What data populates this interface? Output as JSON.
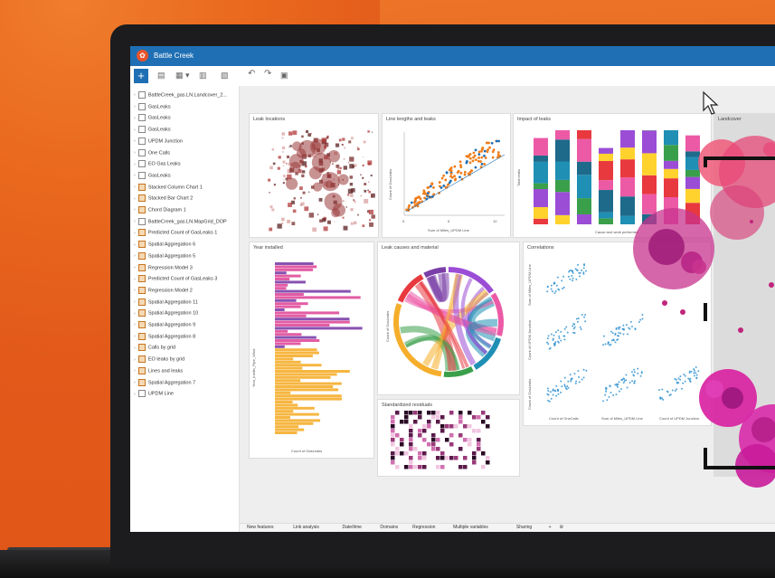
{
  "app": {
    "title": "Battle Creek",
    "logo_glyph": "✿",
    "add_glyph": "+"
  },
  "toolbar": {
    "icons": [
      "undo-icon",
      "redo-icon",
      "layout-icon"
    ],
    "glyphs": {
      "tool1": "▤",
      "tool2": "▦ ▾",
      "tool3": "▥",
      "tool4": "▧",
      "undo": "↶",
      "redo": "↷",
      "layout": "▣"
    }
  },
  "sidebar": {
    "items": [
      {
        "label": "BattleCreek_gas.LN.Landcover_2...",
        "type": "layer"
      },
      {
        "label": "GasLeaks",
        "type": "layer"
      },
      {
        "label": "GasLeaks",
        "type": "layer"
      },
      {
        "label": "GasLeaks",
        "type": "layer"
      },
      {
        "label": "UPDM Junction",
        "type": "layer"
      },
      {
        "label": "One Calls",
        "type": "layer"
      },
      {
        "label": "EO Gas Leaks",
        "type": "layer"
      },
      {
        "label": "GasLeaks",
        "type": "layer"
      },
      {
        "label": "Stacked Column Chart 1",
        "type": "chart"
      },
      {
        "label": "Stacked Bar Chart 2",
        "type": "chart"
      },
      {
        "label": "Chord Diagram 1",
        "type": "chart"
      },
      {
        "label": "BattleCreek_gas.LN.MapGrid_DOP",
        "type": "layer"
      },
      {
        "label": "Predicted Count of GasLeaks 1",
        "type": "chart"
      },
      {
        "label": "Spatial Aggregation 6",
        "type": "chart"
      },
      {
        "label": "Spatial Aggregation 5",
        "type": "chart"
      },
      {
        "label": "Regression Model 3",
        "type": "model"
      },
      {
        "label": "Predicted Count of GasLeaks 3",
        "type": "chart"
      },
      {
        "label": "Regression Model 2",
        "type": "model"
      },
      {
        "label": "Spatial Aggregation 11",
        "type": "chart"
      },
      {
        "label": "Spatial Aggregation 10",
        "type": "chart"
      },
      {
        "label": "Spatial Aggregation 9",
        "type": "chart"
      },
      {
        "label": "Spatial Aggregation 8",
        "type": "chart"
      },
      {
        "label": "Calls by grid",
        "type": "chart"
      },
      {
        "label": "EO leaks by grid",
        "type": "chart"
      },
      {
        "label": "Lines and leaks",
        "type": "chart"
      },
      {
        "label": "Spatial Aggregation 7",
        "type": "chart"
      },
      {
        "label": "UPDM Line",
        "type": "layer"
      }
    ]
  },
  "cards": {
    "leak_locations": "Leak locations",
    "line_lengths": "Line lengths and leaks",
    "impact": "Impact of leaks",
    "landcover": "Landcover",
    "year_installed": "Year installed",
    "causes": "Leak causes and material",
    "correlations": "Correlations",
    "residuals": "Standardized residuals"
  },
  "chart_labels": {
    "line_x": "Sum of Miles_UPDM Line",
    "line_y": "Count of GasLeaks",
    "impact_x": "Cause and work performed",
    "impact_y": "Total leaks",
    "year_x": "Count of GasLeaks",
    "year_y": "Year_Instlln_Pipe_Wind",
    "causes_y": "Count of GasLeaks",
    "corr_x1": "Count of OneCalls",
    "corr_x2": "Sum of Miles_UPDM Line",
    "corr_x3": "Count of UPDM Junction",
    "corr_y1": "Sum of Miles_UPDM Line",
    "corr_y2": "Count of UPDM Junction",
    "corr_y3": "Count of GasLeaks",
    "scatter_ticks": [
      "0",
      "5",
      "10"
    ]
  },
  "tabs": [
    "New features",
    "Link analysis",
    "Date/time",
    "Domains",
    "Regression",
    "Multiple variables",
    "Sharing"
  ],
  "tab_extra": {
    "add": "+",
    "settings": "⚙"
  },
  "colors": {
    "accent": "#1f6fb4",
    "brand": "#e8542a"
  }
}
